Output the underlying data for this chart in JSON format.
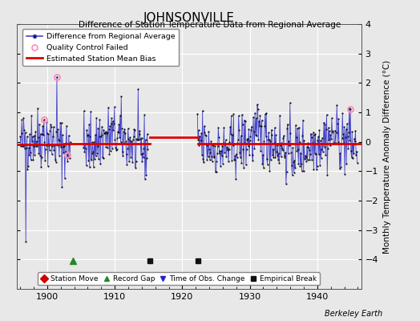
{
  "title": "JOHNSONVILLE",
  "subtitle": "Difference of Station Temperature Data from Regional Average",
  "ylabel": "Monthly Temperature Anomaly Difference (°C)",
  "xlim": [
    1895.5,
    1946.5
  ],
  "ylim": [
    -5,
    4
  ],
  "yticks": [
    -4,
    -3,
    -2,
    -1,
    0,
    1,
    2,
    3,
    4
  ],
  "background_color": "#e8e8e8",
  "plot_bg_color": "#e8e8e8",
  "grid_color": "#ffffff",
  "line_color": "#4444cc",
  "dot_color": "#111111",
  "bias_color": "#dd0000",
  "qc_color": "#ff88bb",
  "watermark": "Berkeley Earth",
  "record_gap_x": 1903.8,
  "empirical_break_x1": 1915.2,
  "empirical_break_x2": 1922.3,
  "bias_segments": [
    {
      "x": [
        1895.5,
        1902.5
      ],
      "y": [
        -0.08,
        -0.08
      ]
    },
    {
      "x": [
        1902.5,
        1915.2
      ],
      "y": [
        -0.05,
        -0.05
      ]
    },
    {
      "x": [
        1915.2,
        1922.3
      ],
      "y": [
        0.15,
        0.15
      ]
    },
    {
      "x": [
        1922.3,
        1946.5
      ],
      "y": [
        -0.06,
        -0.06
      ]
    }
  ],
  "seed": 42,
  "years_start": 1896.0,
  "years_end": 1945.9,
  "gap1_start": 1903.5,
  "gap1_end": 1905.3,
  "gap2_start": 1914.9,
  "gap2_end": 1922.2,
  "figsize": [
    5.24,
    4.0
  ],
  "dpi": 100
}
